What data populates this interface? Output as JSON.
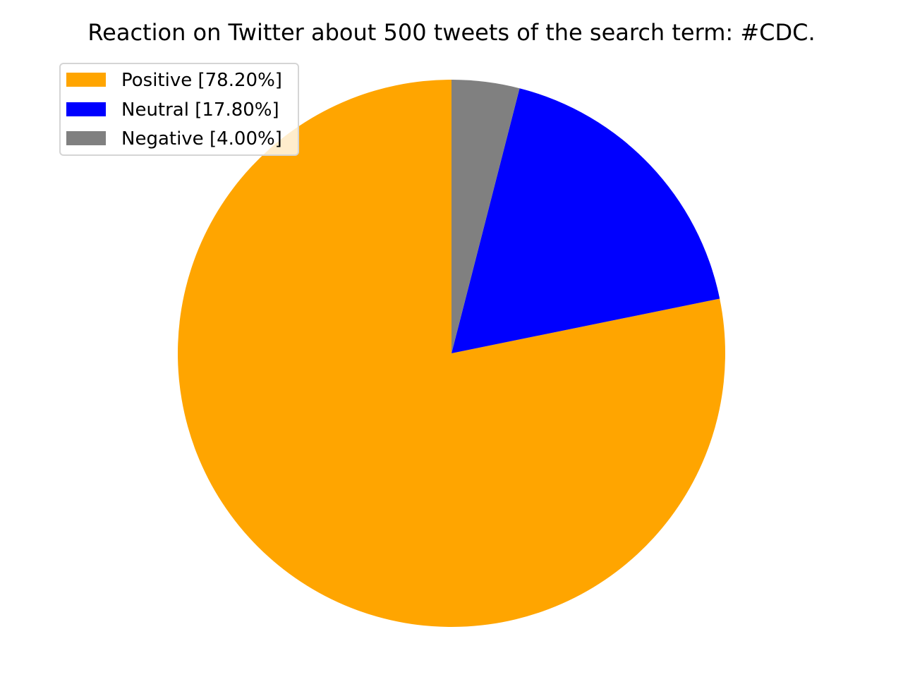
{
  "chart_data": {
    "type": "pie",
    "title": "Reaction on Twitter about 500 tweets of the search term: #CDC.",
    "slices": [
      {
        "label": "Positive [78.20%]",
        "value": 78.2,
        "color": "#ffa500"
      },
      {
        "label": "Neutral [17.80%]",
        "value": 17.8,
        "color": "#0000ff"
      },
      {
        "label": "Negative [4.00%]",
        "value": 4.0,
        "color": "#808080"
      }
    ],
    "start_angle_deg": 90,
    "direction": "counterclockwise",
    "legend_placement": "upper-left"
  }
}
